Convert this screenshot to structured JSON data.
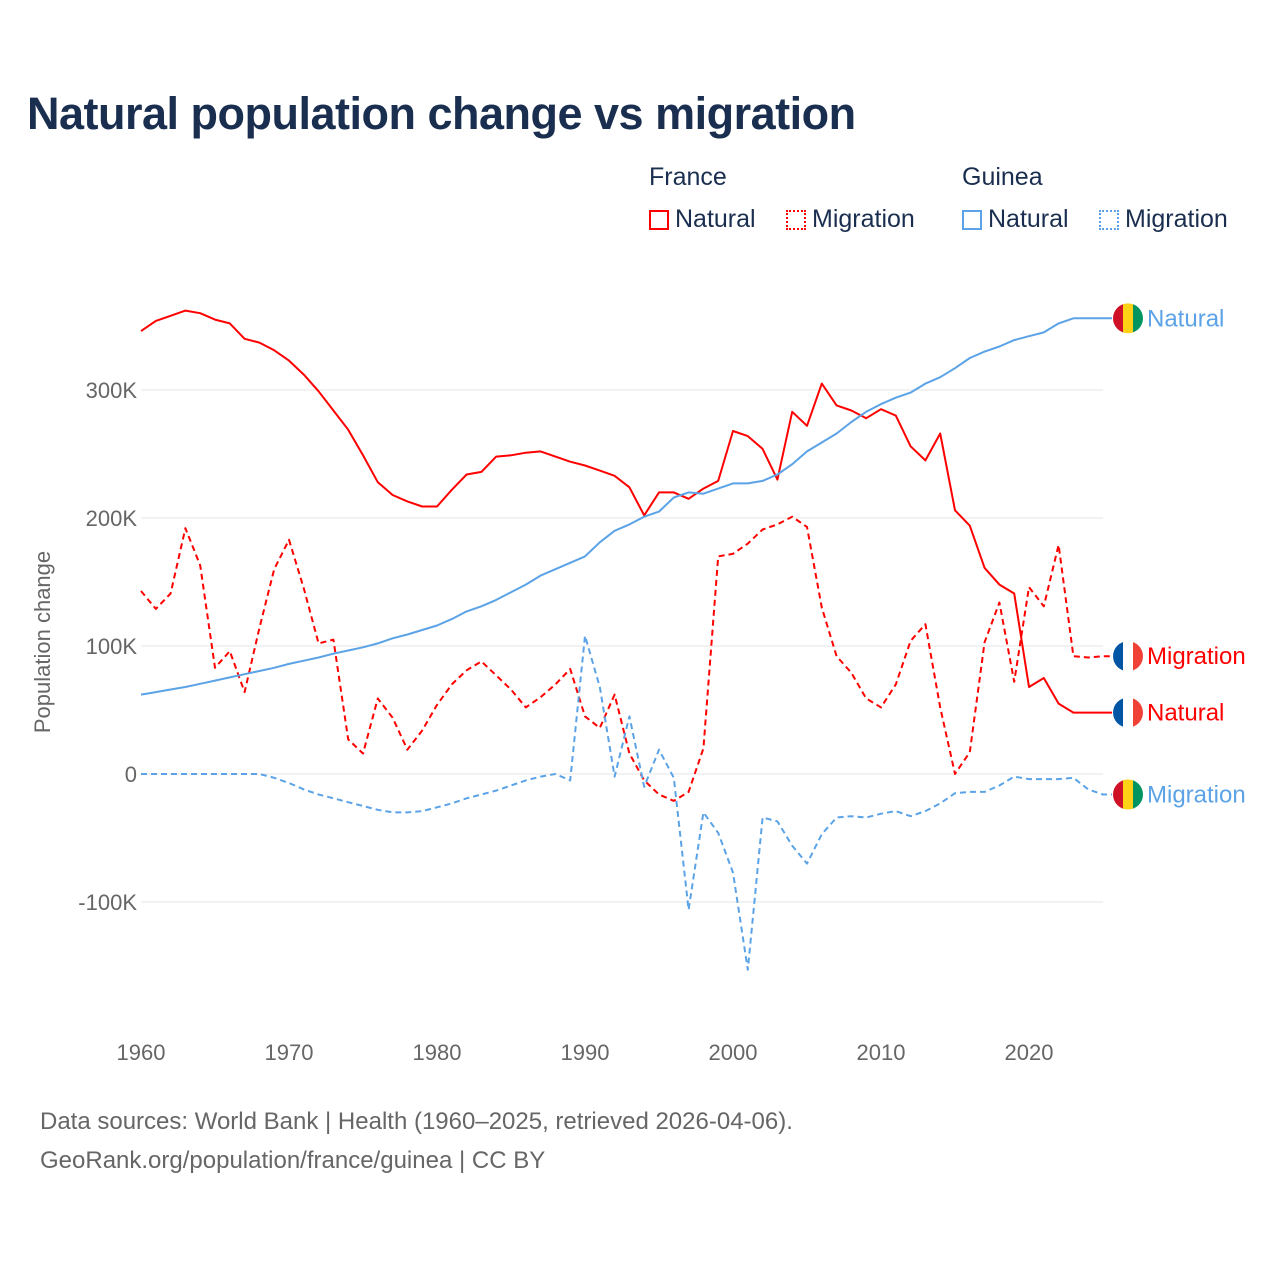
{
  "title": "Natural population change vs migration",
  "legend": {
    "groups": [
      {
        "name": "France",
        "items": [
          {
            "label": "Natural",
            "color": "#ff0000",
            "style": "solid"
          },
          {
            "label": "Migration",
            "color": "#ff0000",
            "style": "dotted"
          }
        ]
      },
      {
        "name": "Guinea",
        "items": [
          {
            "label": "Natural",
            "color": "#5ba3e6",
            "style": "solid"
          },
          {
            "label": "Migration",
            "color": "#5ba3e6",
            "style": "dotted"
          }
        ]
      }
    ]
  },
  "footer": {
    "line1": "Data sources: World Bank | Health (1960–2025, retrieved 2026-04-06).",
    "line2": "GeoRank.org/population/france/guinea | CC BY"
  },
  "chart_data": {
    "type": "line",
    "title": "Natural population change vs migration",
    "xlabel": "",
    "ylabel": "Population change",
    "xlim": [
      1960,
      2025
    ],
    "ylim": [
      -170,
      380
    ],
    "x_ticks": [
      "1960",
      "1970",
      "1980",
      "1990",
      "2000",
      "2010",
      "2020"
    ],
    "y_ticks": [
      {
        "value": -100,
        "label": "-100K"
      },
      {
        "value": 0,
        "label": "0"
      },
      {
        "value": 100,
        "label": "100K"
      },
      {
        "value": 200,
        "label": "200K"
      },
      {
        "value": 300,
        "label": "300K"
      }
    ],
    "units": "thousands",
    "grid": true,
    "start_year": 1960,
    "series": [
      {
        "name": "France Natural",
        "end_label": "Natural",
        "flag": "france",
        "color": "#ff0000",
        "dash": false,
        "values": [
          346,
          354,
          358,
          362,
          360,
          355,
          352,
          340,
          337,
          331,
          323,
          312,
          299,
          284,
          269,
          249,
          228,
          218,
          213,
          209,
          209,
          222,
          234,
          236,
          248,
          249,
          251,
          252,
          248,
          244,
          241,
          237,
          233,
          224,
          202,
          220,
          220,
          215,
          223,
          229,
          268,
          264,
          254,
          230,
          283,
          272,
          305,
          288,
          284,
          278,
          285,
          280,
          256,
          245,
          266,
          206,
          194,
          161,
          148,
          141,
          68,
          75,
          55,
          48,
          48,
          48
        ]
      },
      {
        "name": "France Migration",
        "end_label": "Migration",
        "flag": "france",
        "color": "#ff0000",
        "dash": true,
        "values": [
          143,
          129,
          141,
          192,
          163,
          83,
          96,
          64,
          114,
          160,
          183,
          145,
          102,
          105,
          27,
          16,
          59,
          44,
          19,
          34,
          54,
          70,
          81,
          88,
          77,
          66,
          52,
          60,
          70,
          82,
          45,
          36,
          62,
          16,
          -5,
          -16,
          -21,
          -14,
          20,
          170,
          172,
          180,
          191,
          195,
          201,
          193,
          130,
          92,
          79,
          59,
          52,
          70,
          104,
          117,
          52,
          0,
          17,
          103,
          134,
          72,
          146,
          131,
          179,
          92,
          91,
          92
        ]
      },
      {
        "name": "Guinea Natural",
        "end_label": "Natural",
        "flag": "guinea",
        "color": "#5ba3e6",
        "dash": false,
        "values": [
          62,
          64,
          66,
          68,
          70.5,
          73,
          75.5,
          78,
          80.5,
          83,
          86,
          88.5,
          91,
          94,
          96.5,
          99,
          102,
          106,
          109,
          112.5,
          116,
          121,
          127,
          131,
          136,
          142,
          148,
          155,
          160,
          165,
          170,
          181,
          190,
          195,
          201,
          205,
          216,
          220,
          219,
          223,
          227,
          227,
          229,
          234,
          242,
          252,
          259,
          266,
          275,
          283,
          289,
          294,
          298,
          305,
          310,
          317,
          325,
          330,
          334,
          339,
          342,
          345,
          352,
          356,
          356,
          356
        ]
      },
      {
        "name": "Guinea Migration",
        "end_label": "Migration",
        "flag": "guinea",
        "color": "#5ba3e6",
        "dash": true,
        "values": [
          0,
          0,
          0,
          0,
          0,
          0,
          0,
          0,
          0,
          -3,
          -7,
          -12,
          -16,
          -19,
          -22,
          -25,
          -28,
          -30,
          -30,
          -29,
          -26,
          -23,
          -19,
          -16,
          -13,
          -9,
          -5,
          -2,
          0,
          -5,
          108,
          68,
          -2,
          45,
          -10,
          19,
          -3,
          -106,
          -30,
          -46,
          -77,
          -153,
          -34,
          -37,
          -56,
          -70,
          -47,
          -34,
          -33,
          -34,
          -31,
          -29,
          -33,
          -29,
          -23,
          -15,
          -14,
          -14,
          -9,
          -2,
          -4,
          -4,
          -4,
          -3,
          -12,
          -16
        ]
      }
    ]
  }
}
